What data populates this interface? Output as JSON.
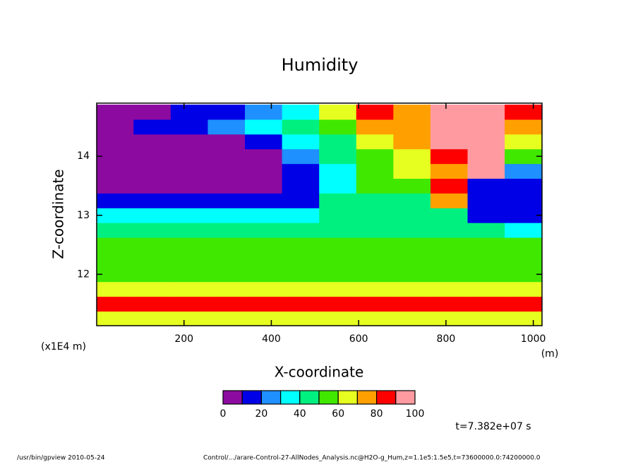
{
  "chart_data": {
    "type": "contour",
    "title": "Humidity",
    "x_label": "X-coordinate",
    "y_label": "Z-coordinate",
    "x_unit": "(m)",
    "y_unit": "(x1E4 m)",
    "time_label": "t=7.382e+07 s",
    "footer_left": "/usr/bin/gpview  2010-05-24",
    "footer_right": "Control/.../arare-Control-27-AllNodes_Analysis.nc@H2O-g_Hum,z=1.1e5:1.5e5,t=73600000.0:74200000.0",
    "xlim": [
      0,
      1020
    ],
    "xticks": [
      200,
      400,
      600,
      800,
      1000
    ],
    "ylim": [
      11.13,
      14.9
    ],
    "yticks": [
      12,
      13,
      14
    ],
    "x": [
      42,
      127,
      212,
      297,
      382,
      467,
      552,
      637,
      722,
      807,
      892,
      977
    ],
    "y": [
      11.25,
      11.5,
      11.75,
      12.0,
      12.25,
      12.5,
      12.75,
      13.0,
      13.25,
      13.5,
      13.75,
      14.0,
      14.25,
      14.5,
      14.75
    ],
    "z": [
      [
        65,
        65,
        65,
        65,
        65,
        65,
        65,
        65,
        65,
        65,
        65,
        65
      ],
      [
        85,
        85,
        85,
        85,
        85,
        85,
        85,
        85,
        85,
        85,
        85,
        85
      ],
      [
        65,
        65,
        65,
        65,
        65,
        65,
        65,
        65,
        65,
        65,
        65,
        65
      ],
      [
        55,
        55,
        55,
        55,
        55,
        55,
        55,
        55,
        55,
        55,
        55,
        55
      ],
      [
        55,
        55,
        55,
        55,
        55,
        55,
        55,
        55,
        55,
        55,
        55,
        55
      ],
      [
        55,
        55,
        55,
        55,
        55,
        55,
        50,
        50,
        50,
        50,
        55,
        55
      ],
      [
        45,
        45,
        45,
        45,
        45,
        45,
        45,
        45,
        45,
        45,
        45,
        35
      ],
      [
        35,
        35,
        35,
        35,
        35,
        35,
        45,
        45,
        45,
        45,
        15,
        15
      ],
      [
        15,
        15,
        15,
        15,
        15,
        15,
        45,
        45,
        45,
        75,
        10,
        10
      ],
      [
        5,
        5,
        5,
        5,
        5,
        15,
        30,
        50,
        55,
        85,
        15,
        15
      ],
      [
        5,
        5,
        5,
        5,
        5,
        15,
        30,
        55,
        65,
        75,
        95,
        25
      ],
      [
        5,
        5,
        5,
        5,
        5,
        25,
        40,
        50,
        60,
        85,
        95,
        50
      ],
      [
        5,
        5,
        5,
        5,
        15,
        35,
        45,
        60,
        70,
        90,
        95,
        65
      ],
      [
        5,
        15,
        15,
        25,
        35,
        45,
        55,
        75,
        75,
        95,
        95,
        75
      ],
      [
        5,
        5,
        15,
        15,
        25,
        30,
        65,
        85,
        75,
        95,
        95,
        80
      ]
    ],
    "levels": [
      0,
      10,
      20,
      30,
      40,
      50,
      60,
      70,
      80,
      90,
      100
    ],
    "colors": [
      "#8c0aa0",
      "#0000e6",
      "#1e90ff",
      "#00ffff",
      "#00f080",
      "#40e800",
      "#e6ff20",
      "#ffa000",
      "#ff0000",
      "#ff9aa0"
    ],
    "colorbar_ticks": [
      0,
      20,
      40,
      60,
      80,
      100
    ]
  }
}
